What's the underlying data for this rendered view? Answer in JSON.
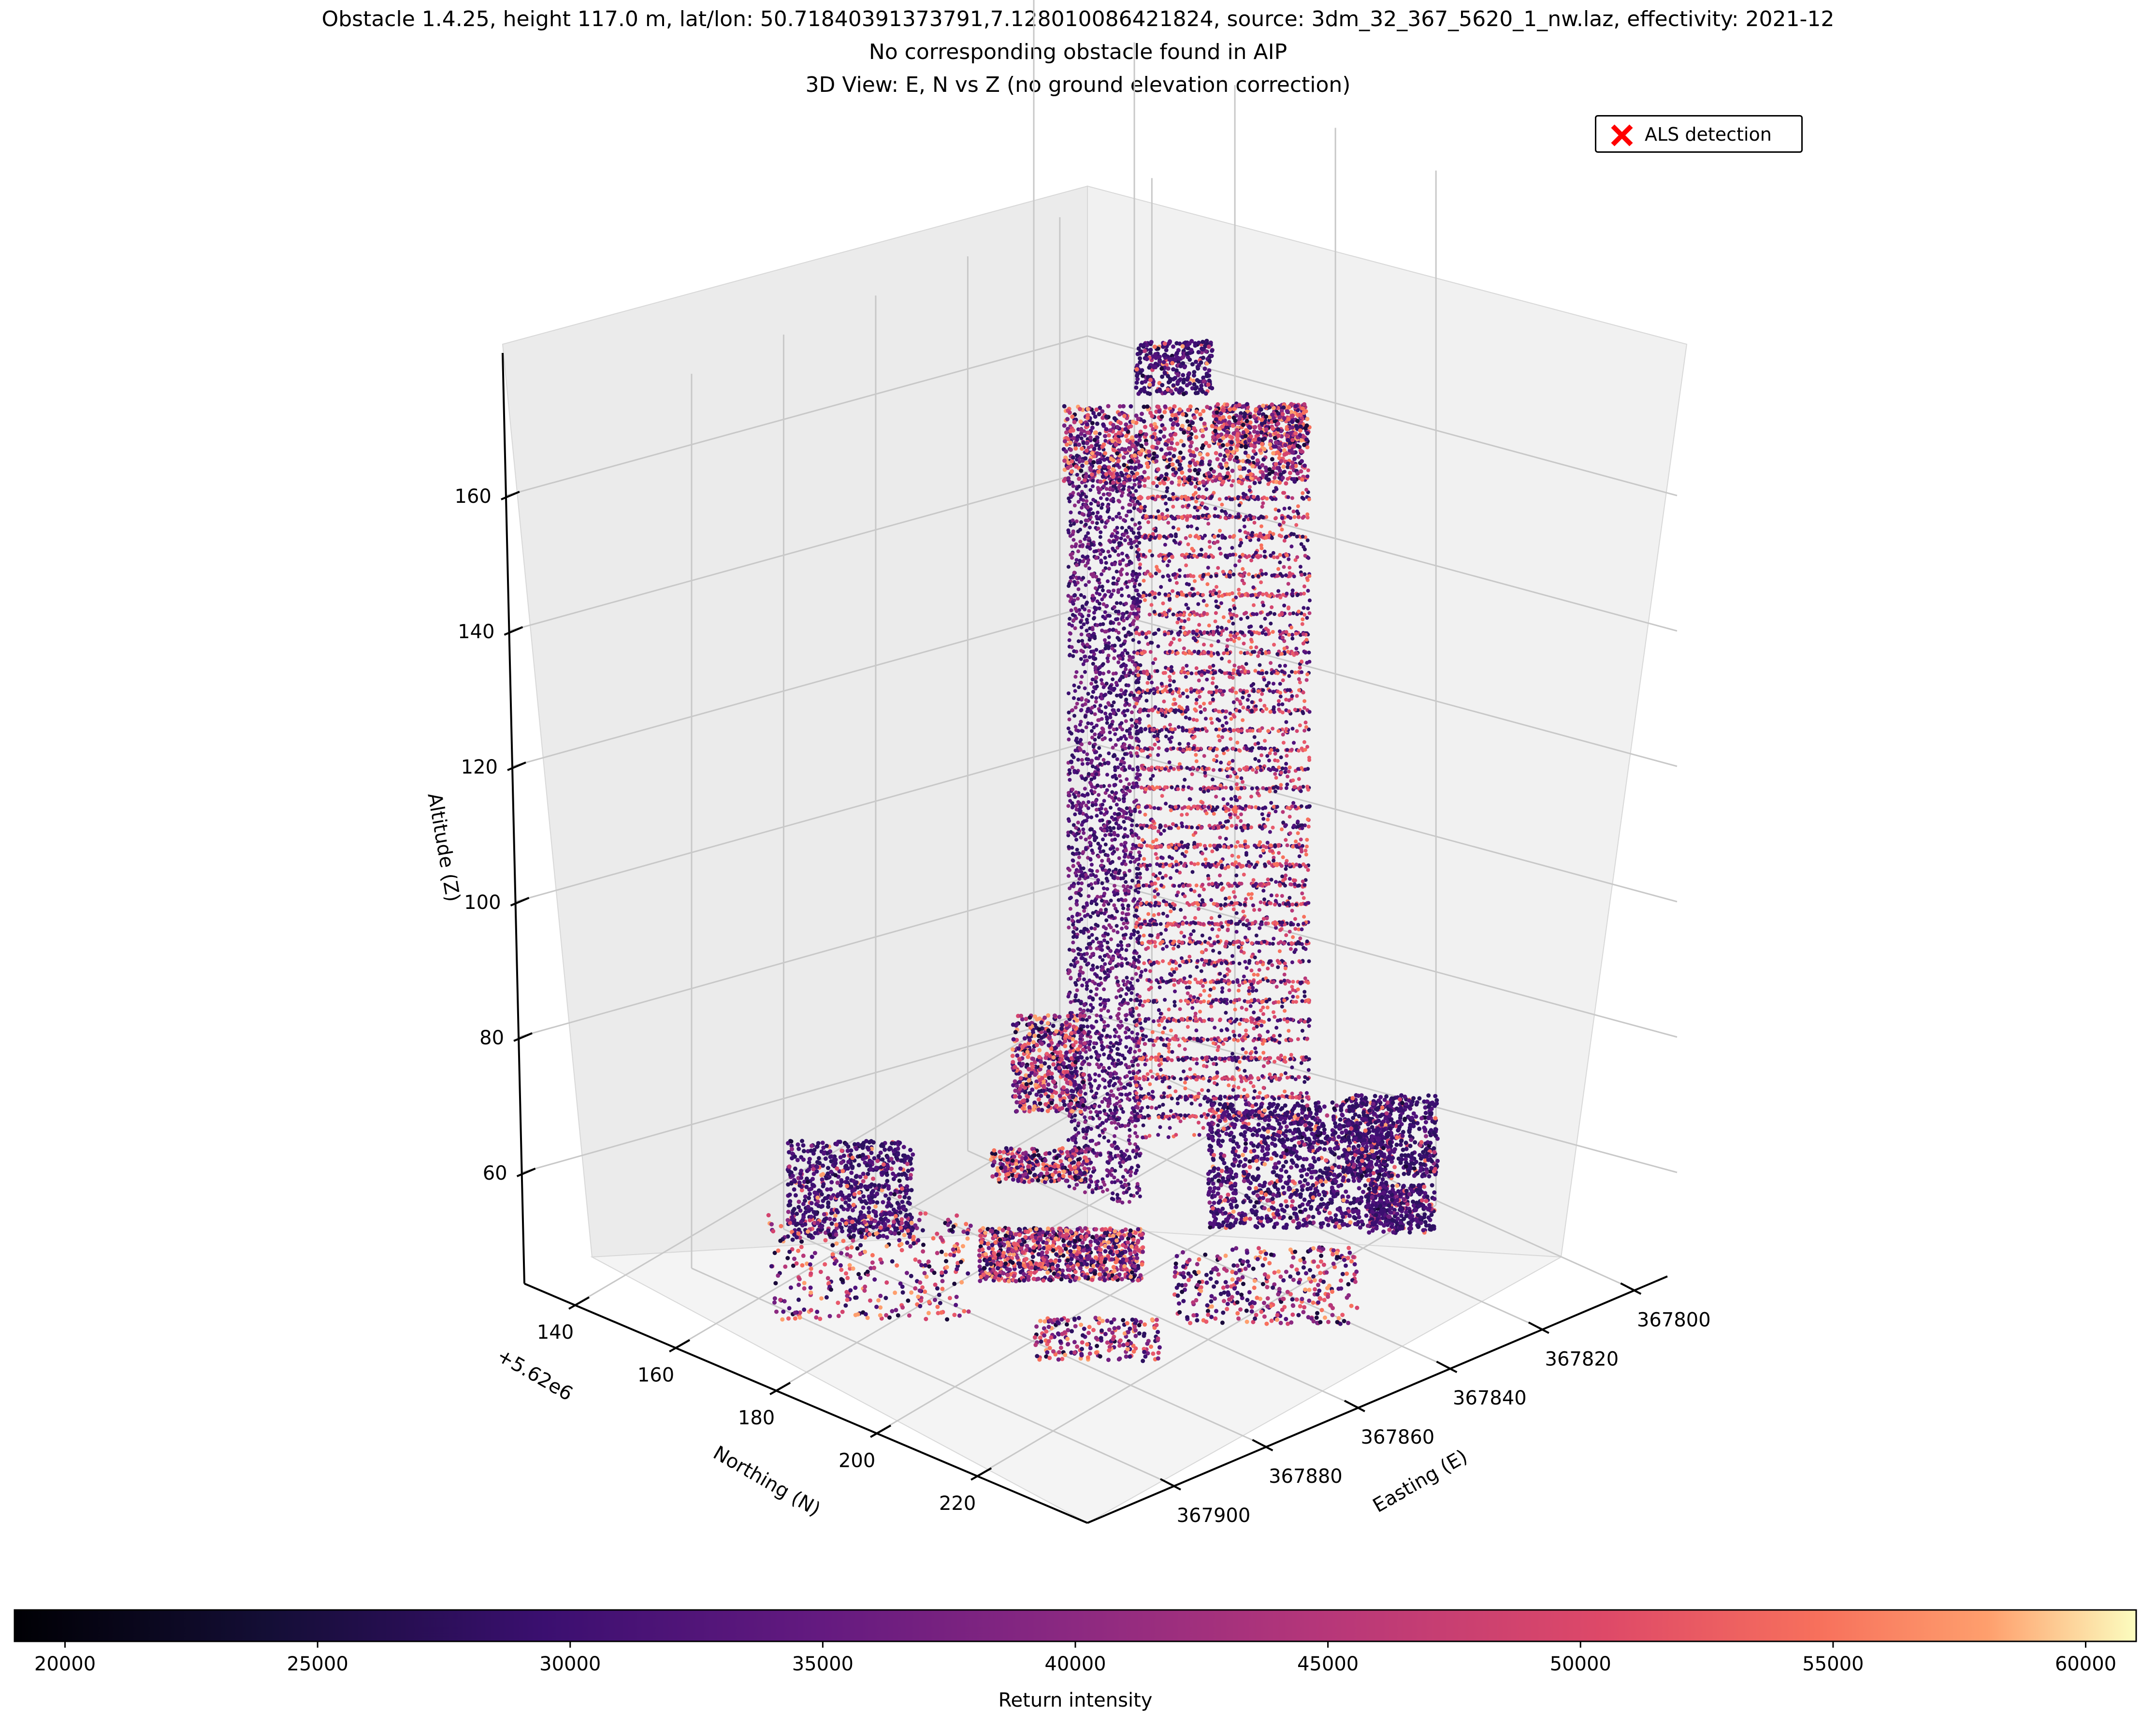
{
  "titles": {
    "line1": "Obstacle 1.4.25, height 117.0 m, lat/lon: 50.71840391373791,7.128010086421824, source: 3dm_32_367_5620_1_nw.laz, effectivity: 2021-12",
    "line2": "No corresponding obstacle found in AIP",
    "line3": "3D View: E, N vs Z (no ground elevation correction)"
  },
  "legend": {
    "label": "ALS detection",
    "marker_color": "#ff0000"
  },
  "chart_data": {
    "type": "scatter",
    "projection": "3d",
    "axes": {
      "z": {
        "label": "Altitude (Z)",
        "ticks": [
          "60",
          "80",
          "100",
          "120",
          "140",
          "160"
        ]
      },
      "northing": {
        "label": "Northing (N)",
        "offset_label": "+5.62e6",
        "ticks": [
          "140",
          "160",
          "180",
          "200",
          "220"
        ]
      },
      "easting": {
        "label": "Easting (E)",
        "ticks": [
          "367800",
          "367820",
          "367840",
          "367860",
          "367880",
          "367900"
        ]
      }
    },
    "colorbar": {
      "label": "Return intensity",
      "colormap": "magma",
      "ticks": [
        "20000",
        "25000",
        "30000",
        "35000",
        "40000",
        "45000",
        "50000",
        "55000",
        "60000"
      ],
      "range": [
        19000,
        61000
      ]
    },
    "grid": true,
    "legend_position": "top-right"
  }
}
